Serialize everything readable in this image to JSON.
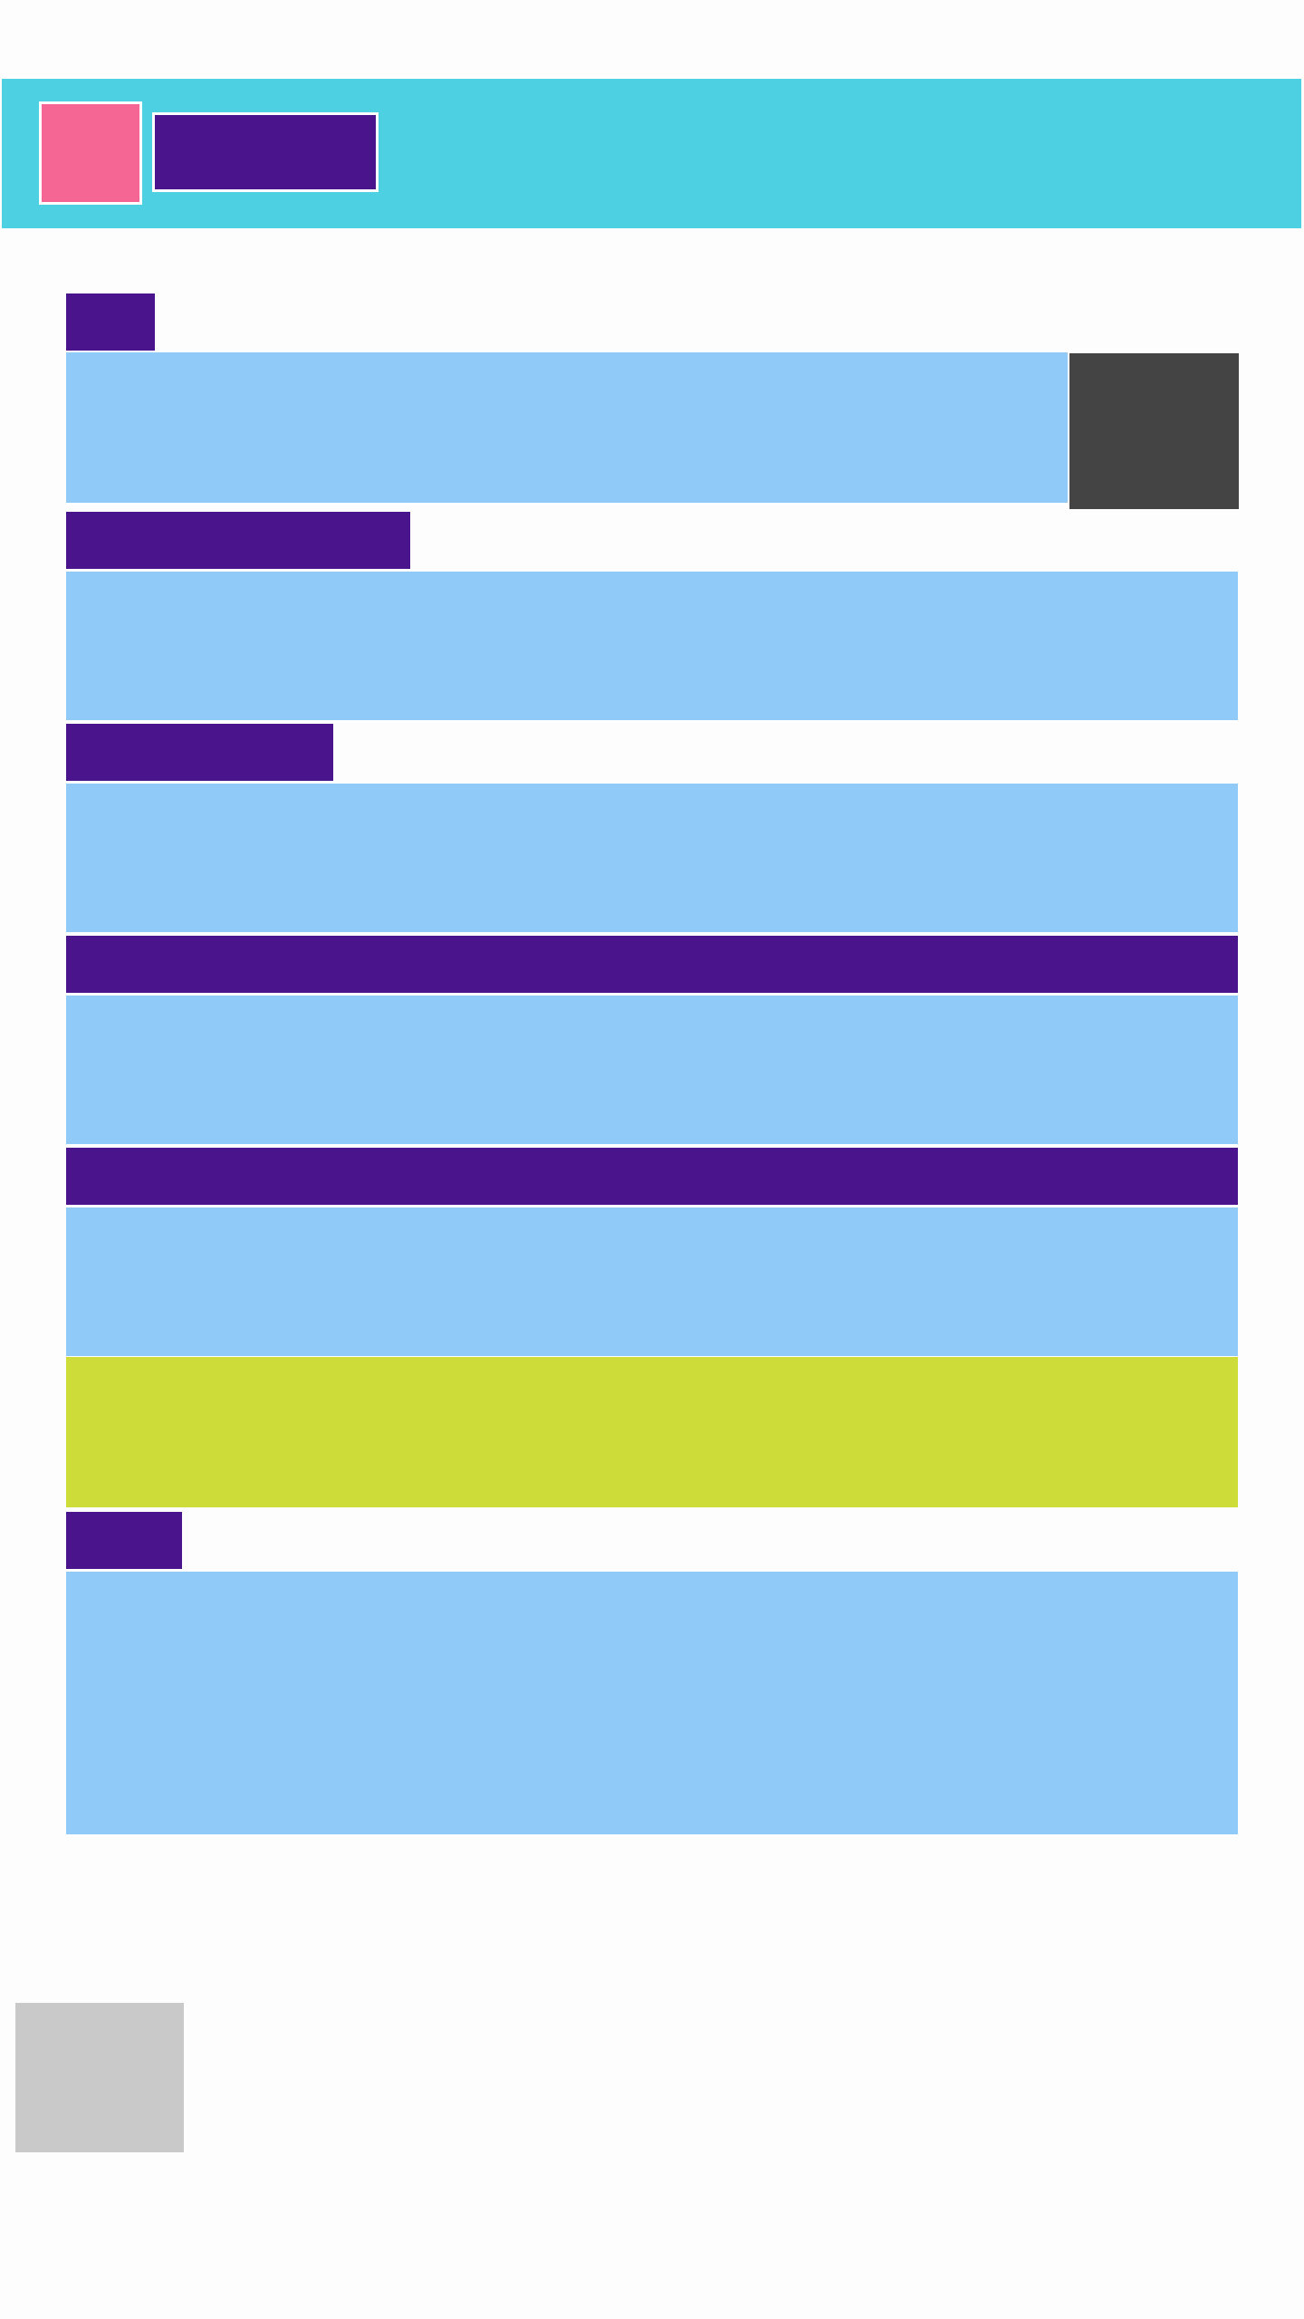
{
  "header": {
    "title": "",
    "logo_icon": "app-logo-icon"
  },
  "form": {
    "fields": [
      {
        "label": "",
        "value": ""
      },
      {
        "label": "",
        "value": ""
      },
      {
        "label": "",
        "value": ""
      },
      {
        "label": "",
        "value": ""
      },
      {
        "label": "",
        "value": ""
      },
      {
        "label": "",
        "value": ""
      }
    ],
    "side_block": "",
    "action_label": ""
  },
  "footer": {
    "thumbnail_icon": "image-placeholder-icon"
  },
  "colors": {
    "header": "#4ed0e3",
    "logo": "#f56695",
    "label": "#4a148c",
    "field": "#90caf9",
    "side_block": "#444444",
    "action": "#cddc39",
    "thumbnail": "#c9c9c9",
    "background": "#fdfdfd"
  }
}
